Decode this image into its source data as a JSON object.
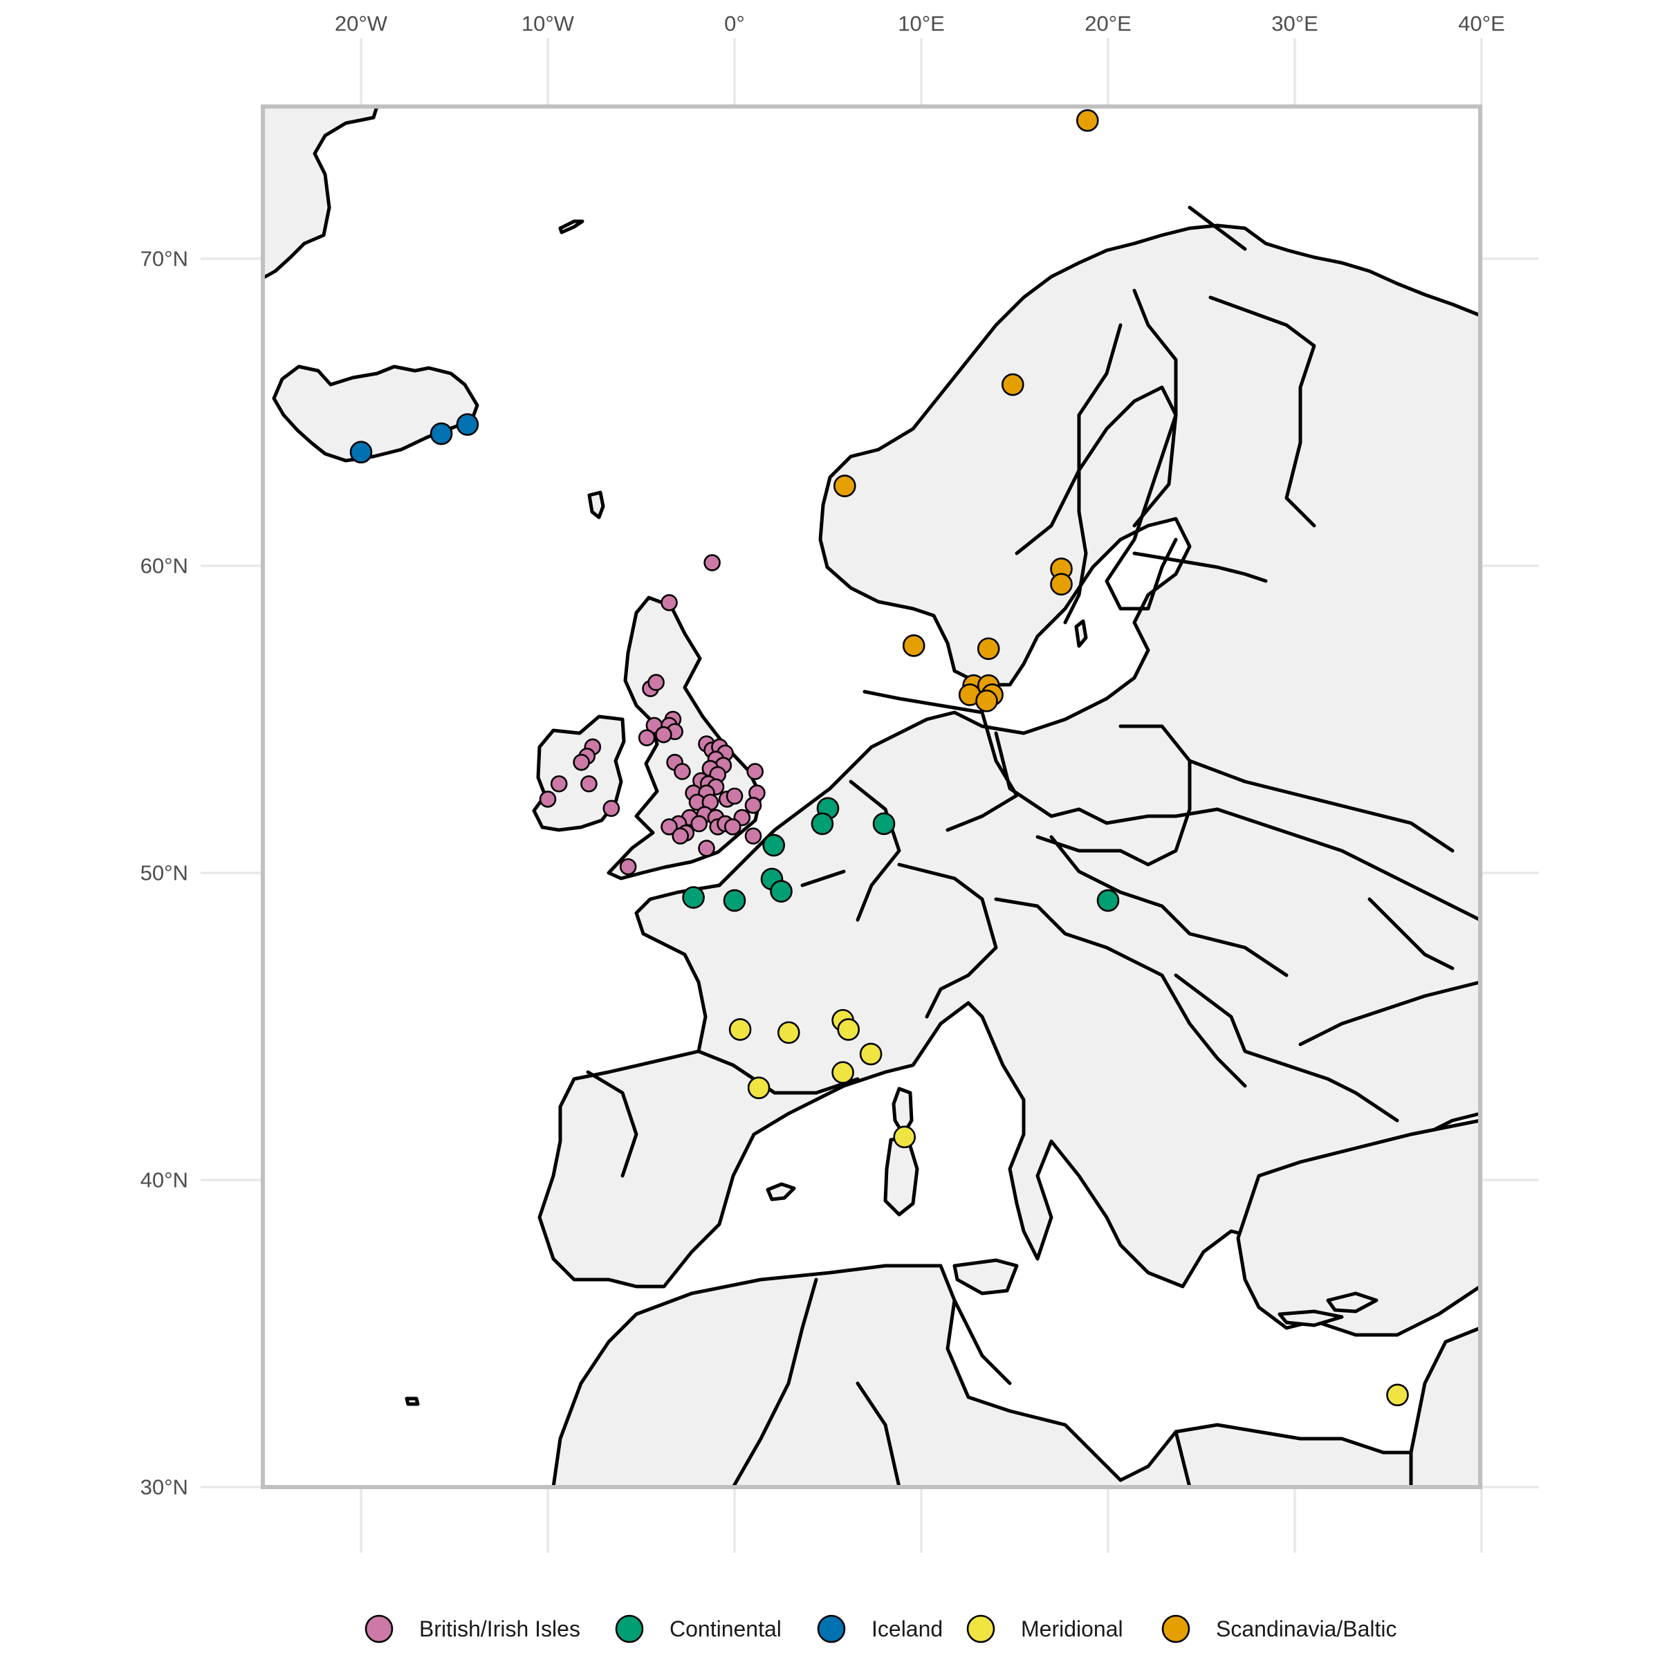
{
  "chart_data": {
    "type": "scatter",
    "projection": "equirectangular",
    "basemap": "Europe, North Africa and Near East country outlines",
    "xlim": [
      -25,
      40
    ],
    "ylim": [
      30,
      75
    ],
    "grid": true,
    "legend_position": "bottom",
    "x_ticks": [
      {
        "value": -20,
        "label": "20°W"
      },
      {
        "value": -10,
        "label": "10°W"
      },
      {
        "value": 0,
        "label": "0°"
      },
      {
        "value": 10,
        "label": "10°E"
      },
      {
        "value": 20,
        "label": "20°E"
      },
      {
        "value": 30,
        "label": "30°E"
      },
      {
        "value": 40,
        "label": "40°E"
      }
    ],
    "y_ticks": [
      {
        "value": 30,
        "label": "30°N"
      },
      {
        "value": 40,
        "label": "40°N"
      },
      {
        "value": 50,
        "label": "50°N"
      },
      {
        "value": 60,
        "label": "60°N"
      },
      {
        "value": 70,
        "label": "70°N"
      }
    ],
    "series": [
      {
        "name": "British/Irish Isles",
        "color": "#cc79a7",
        "size": "small",
        "points": [
          [
            -1.2,
            60.1
          ],
          [
            -3.5,
            58.8
          ],
          [
            -4.5,
            56.0
          ],
          [
            -4.2,
            56.2
          ],
          [
            -3.3,
            55.0
          ],
          [
            -4.3,
            54.8
          ],
          [
            -4.7,
            54.4
          ],
          [
            -3.5,
            54.8
          ],
          [
            -3.2,
            54.6
          ],
          [
            -3.8,
            54.5
          ],
          [
            -3.2,
            53.6
          ],
          [
            -2.8,
            53.3
          ],
          [
            -1.5,
            54.2
          ],
          [
            -1.2,
            54.0
          ],
          [
            -0.8,
            54.1
          ],
          [
            -0.5,
            53.9
          ],
          [
            -1.0,
            53.7
          ],
          [
            -0.6,
            53.5
          ],
          [
            -1.3,
            53.4
          ],
          [
            -0.9,
            53.2
          ],
          [
            1.1,
            53.3
          ],
          [
            -1.8,
            53.0
          ],
          [
            -1.4,
            52.9
          ],
          [
            -1.0,
            52.8
          ],
          [
            -2.2,
            52.6
          ],
          [
            -1.5,
            52.6
          ],
          [
            -0.4,
            52.4
          ],
          [
            0.0,
            52.5
          ],
          [
            1.2,
            52.6
          ],
          [
            -2.0,
            52.3
          ],
          [
            -1.3,
            52.3
          ],
          [
            1.0,
            52.2
          ],
          [
            -1.6,
            51.9
          ],
          [
            -2.4,
            51.8
          ],
          [
            -1.0,
            51.8
          ],
          [
            0.4,
            51.8
          ],
          [
            -1.9,
            51.6
          ],
          [
            -3.0,
            51.6
          ],
          [
            -3.5,
            51.5
          ],
          [
            -0.9,
            51.5
          ],
          [
            -0.5,
            51.6
          ],
          [
            -0.1,
            51.5
          ],
          [
            -2.6,
            51.3
          ],
          [
            -2.9,
            51.2
          ],
          [
            1.0,
            51.2
          ],
          [
            -1.5,
            50.8
          ],
          [
            -5.7,
            50.2
          ],
          [
            -7.6,
            54.1
          ],
          [
            -7.9,
            53.8
          ],
          [
            -8.2,
            53.6
          ],
          [
            -9.4,
            52.9
          ],
          [
            -10.0,
            52.4
          ],
          [
            -7.8,
            52.9
          ],
          [
            -6.6,
            52.1
          ]
        ]
      },
      {
        "name": "Continental",
        "color": "#009e73",
        "size": "large",
        "points": [
          [
            5.0,
            52.1
          ],
          [
            4.7,
            51.6
          ],
          [
            8.0,
            51.6
          ],
          [
            2.1,
            50.9
          ],
          [
            2.0,
            49.8
          ],
          [
            2.5,
            49.4
          ],
          [
            0.0,
            49.1
          ],
          [
            -2.2,
            49.2
          ],
          [
            20.0,
            49.1
          ]
        ]
      },
      {
        "name": "Iceland",
        "color": "#0072b2",
        "size": "large",
        "points": [
          [
            -20.0,
            63.7
          ],
          [
            -15.7,
            64.3
          ],
          [
            -14.3,
            64.6
          ]
        ]
      },
      {
        "name": "Meridional",
        "color": "#f0e442",
        "size": "large",
        "points": [
          [
            0.3,
            44.9
          ],
          [
            2.9,
            44.8
          ],
          [
            5.8,
            45.2
          ],
          [
            6.1,
            44.9
          ],
          [
            7.3,
            44.1
          ],
          [
            1.3,
            43.0
          ],
          [
            5.8,
            43.5
          ],
          [
            9.1,
            41.4
          ],
          [
            35.5,
            33.0
          ]
        ]
      },
      {
        "name": "Scandinavia/Baltic",
        "color": "#e69f00",
        "size": "large",
        "points": [
          [
            18.9,
            74.5
          ],
          [
            14.9,
            65.9
          ],
          [
            5.9,
            62.6
          ],
          [
            17.5,
            59.9
          ],
          [
            17.5,
            59.4
          ],
          [
            9.6,
            57.4
          ],
          [
            13.6,
            57.3
          ],
          [
            12.8,
            56.1
          ],
          [
            13.6,
            56.1
          ],
          [
            12.6,
            55.8
          ],
          [
            13.8,
            55.8
          ],
          [
            13.5,
            55.6
          ]
        ]
      }
    ]
  }
}
